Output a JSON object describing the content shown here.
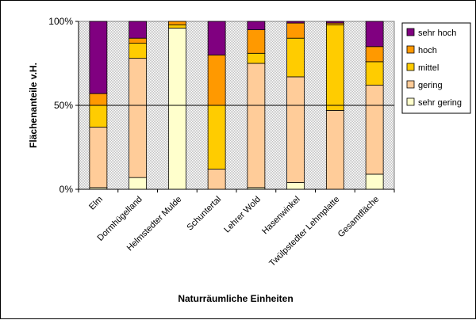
{
  "chart_data": {
    "type": "bar",
    "stacked": true,
    "percent": true,
    "categories": [
      "Elm",
      "Dorm­hügelland",
      "Helmstedter Mulde",
      "Schuntertal",
      "Lehrer Wold",
      "Hasenwinkel",
      "Twülpstedter Lehmplatte",
      "Gesamtfläche"
    ],
    "series": [
      {
        "name": "sehr gering",
        "color": "#FFFFCC",
        "values": [
          1,
          7,
          96,
          0,
          1,
          4,
          0,
          9
        ]
      },
      {
        "name": "gering",
        "color": "#FFCC99",
        "values": [
          36,
          71,
          0,
          12,
          74,
          63,
          47,
          53
        ]
      },
      {
        "name": "mittel",
        "color": "#FFCC00",
        "values": [
          13,
          9,
          2,
          38,
          6,
          23,
          51,
          14
        ]
      },
      {
        "name": "hoch",
        "color": "#FF9900",
        "values": [
          7,
          3,
          2,
          30,
          14,
          9,
          1,
          9
        ]
      },
      {
        "name": "sehr hoch",
        "color": "#800080",
        "values": [
          43,
          10,
          0,
          20,
          5,
          1,
          1,
          15
        ]
      }
    ],
    "ylabel": "Flächenanteile v.H.",
    "xlabel": "Naturräumliche Einheiten",
    "yticks": [
      "0%",
      "50%",
      "100%"
    ],
    "ylim": [
      0,
      100
    ],
    "grid": "50% line",
    "legend": "right",
    "plot_background": "#C0C0C0"
  }
}
